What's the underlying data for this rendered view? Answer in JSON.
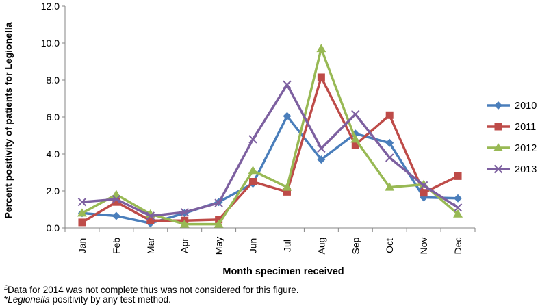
{
  "chart_data": {
    "type": "line",
    "xlabel": "Month specimen received",
    "ylabel": "Percent positivity of patients for Legionella",
    "categories": [
      "Jan",
      "Feb",
      "Mar",
      "Apr",
      "May",
      "Jun",
      "Jul",
      "Aug",
      "Sep",
      "Oct",
      "Nov",
      "Dec"
    ],
    "ylim": [
      0,
      12
    ],
    "y_ticks": [
      "0.0",
      "2.0",
      "4.0",
      "6.0",
      "8.0",
      "10.0",
      "12.0"
    ],
    "grid": false,
    "legend_position": "right",
    "series": [
      {
        "name": "2010",
        "color": "#4a7ebb",
        "marker": "diamond",
        "values": [
          0.8,
          0.65,
          0.25,
          0.8,
          1.4,
          2.4,
          6.05,
          3.7,
          5.1,
          4.6,
          1.65,
          1.6
        ]
      },
      {
        "name": "2011",
        "color": "#be4b48",
        "marker": "square",
        "values": [
          0.3,
          1.4,
          0.4,
          0.4,
          0.45,
          2.5,
          1.95,
          8.15,
          4.5,
          6.1,
          1.9,
          2.8
        ]
      },
      {
        "name": "2012",
        "color": "#98b954",
        "marker": "triangle",
        "values": [
          0.8,
          1.8,
          0.75,
          0.2,
          0.2,
          3.1,
          2.2,
          9.7,
          4.8,
          2.2,
          2.35,
          0.75
        ]
      },
      {
        "name": "2013",
        "color": "#7d60a0",
        "marker": "x",
        "values": [
          1.4,
          1.55,
          0.65,
          0.85,
          1.35,
          4.8,
          7.75,
          4.3,
          6.15,
          3.8,
          2.3,
          1.1
        ]
      }
    ]
  },
  "footnotes": {
    "line1_mark": "£",
    "line1_text": "Data for 2014 was not complete thus was not considered for this figure.",
    "line2_mark": "*",
    "line2_italic": "Legionella",
    "line2_text": " positivity by any test method."
  }
}
